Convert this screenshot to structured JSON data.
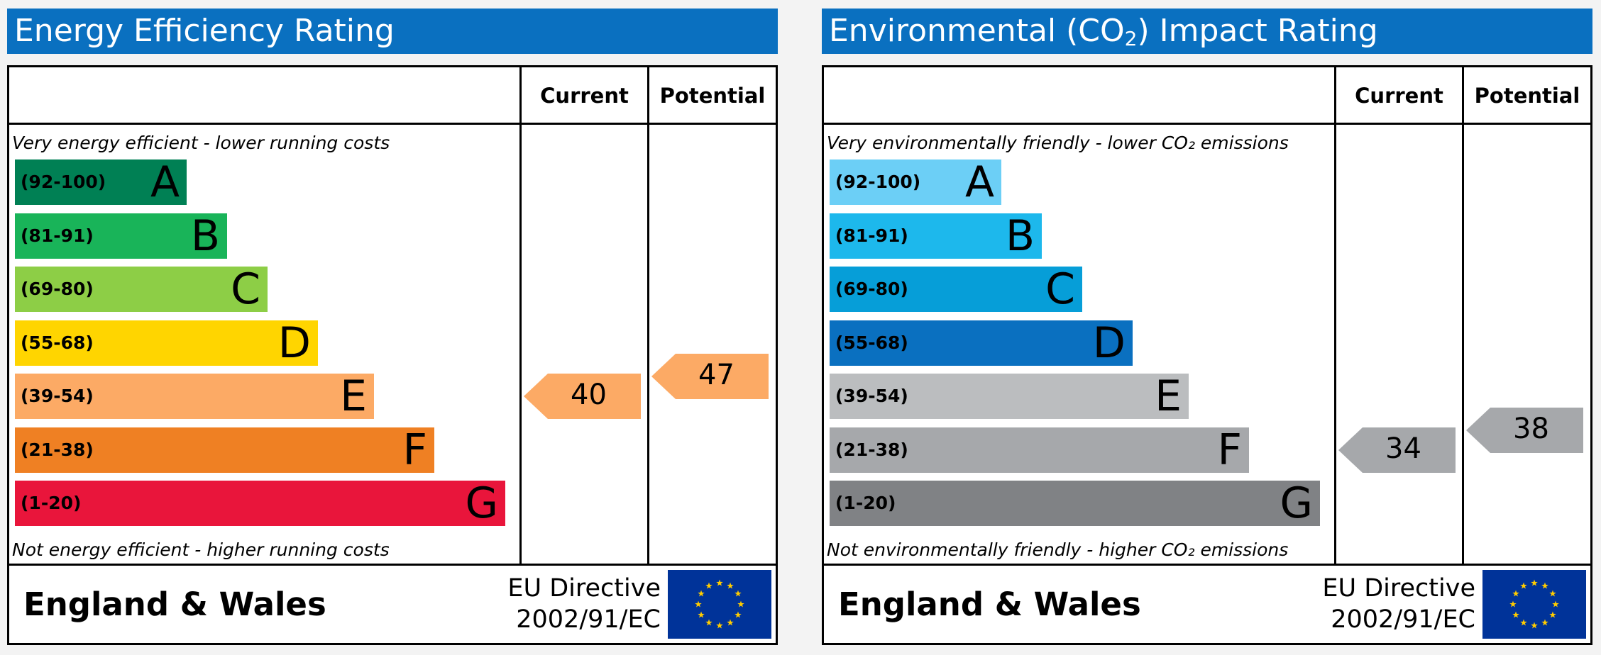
{
  "chart_data": [
    {
      "type": "bar",
      "title": "Energy Efficiency Rating",
      "column_headers": [
        "Current",
        "Potential"
      ],
      "top_note": "Very energy efficient - lower running costs",
      "bottom_note": "Not energy efficient - higher running costs",
      "bands": [
        {
          "range": "(92-100)",
          "letter": "A",
          "color": "#008054",
          "range_color": "#000000",
          "width_fraction": 0.34
        },
        {
          "range": "(81-91)",
          "letter": "B",
          "color": "#19b459",
          "range_color": "#000000",
          "width_fraction": 0.42
        },
        {
          "range": "(69-80)",
          "letter": "C",
          "color": "#8dce46",
          "range_color": "#000000",
          "width_fraction": 0.5
        },
        {
          "range": "(55-68)",
          "letter": "D",
          "color": "#ffd500",
          "range_color": "#000000",
          "width_fraction": 0.6
        },
        {
          "range": "(39-54)",
          "letter": "E",
          "color": "#fcaa65",
          "range_color": "#000000",
          "width_fraction": 0.71
        },
        {
          "range": "(21-38)",
          "letter": "F",
          "color": "#ef8023",
          "range_color": "#000000",
          "width_fraction": 0.83
        },
        {
          "range": "(1-20)",
          "letter": "G",
          "color": "#e9153b",
          "range_color": "#000000",
          "width_fraction": 0.97
        }
      ],
      "current": {
        "value": 40,
        "band": "E",
        "color": "#fcaa65"
      },
      "potential": {
        "value": 47,
        "band": "E",
        "color": "#fcaa65"
      },
      "footer": {
        "region": "England & Wales",
        "directive_line1": "EU Directive",
        "directive_line2": "2002/91/EC"
      }
    },
    {
      "type": "bar",
      "title_prefix": "Environmental (CO",
      "title_sub": "2",
      "title_suffix": ") Impact Rating",
      "column_headers": [
        "Current",
        "Potential"
      ],
      "top_note": "Very environmentally friendly - lower CO₂ emissions",
      "bottom_note": "Not environmentally friendly - higher CO₂ emissions",
      "bands": [
        {
          "range": "(92-100)",
          "letter": "A",
          "color": "#6ccff6",
          "range_color": "#000000",
          "width_fraction": 0.34
        },
        {
          "range": "(81-91)",
          "letter": "B",
          "color": "#1db8ec",
          "range_color": "#000000",
          "width_fraction": 0.42
        },
        {
          "range": "(69-80)",
          "letter": "C",
          "color": "#069ed8",
          "range_color": "#000000",
          "width_fraction": 0.5
        },
        {
          "range": "(55-68)",
          "letter": "D",
          "color": "#0a70c0",
          "range_color": "#000000",
          "width_fraction": 0.6
        },
        {
          "range": "(39-54)",
          "letter": "E",
          "color": "#bbbdbf",
          "range_color": "#000000",
          "width_fraction": 0.71
        },
        {
          "range": "(21-38)",
          "letter": "F",
          "color": "#a6a8ab",
          "range_color": "#000000",
          "width_fraction": 0.83
        },
        {
          "range": "(1-20)",
          "letter": "G",
          "color": "#808285",
          "range_color": "#000000",
          "width_fraction": 0.97
        }
      ],
      "current": {
        "value": 34,
        "band": "F",
        "color": "#a6a8ab"
      },
      "potential": {
        "value": 38,
        "band": "F",
        "color": "#a6a8ab"
      },
      "footer": {
        "region": "England & Wales",
        "directive_line1": "EU Directive",
        "directive_line2": "2002/91/EC"
      }
    }
  ],
  "colors": {
    "title_bar": "#0a70c0",
    "eu_flag_blue": "#003399",
    "eu_flag_star": "#ffcc00"
  }
}
